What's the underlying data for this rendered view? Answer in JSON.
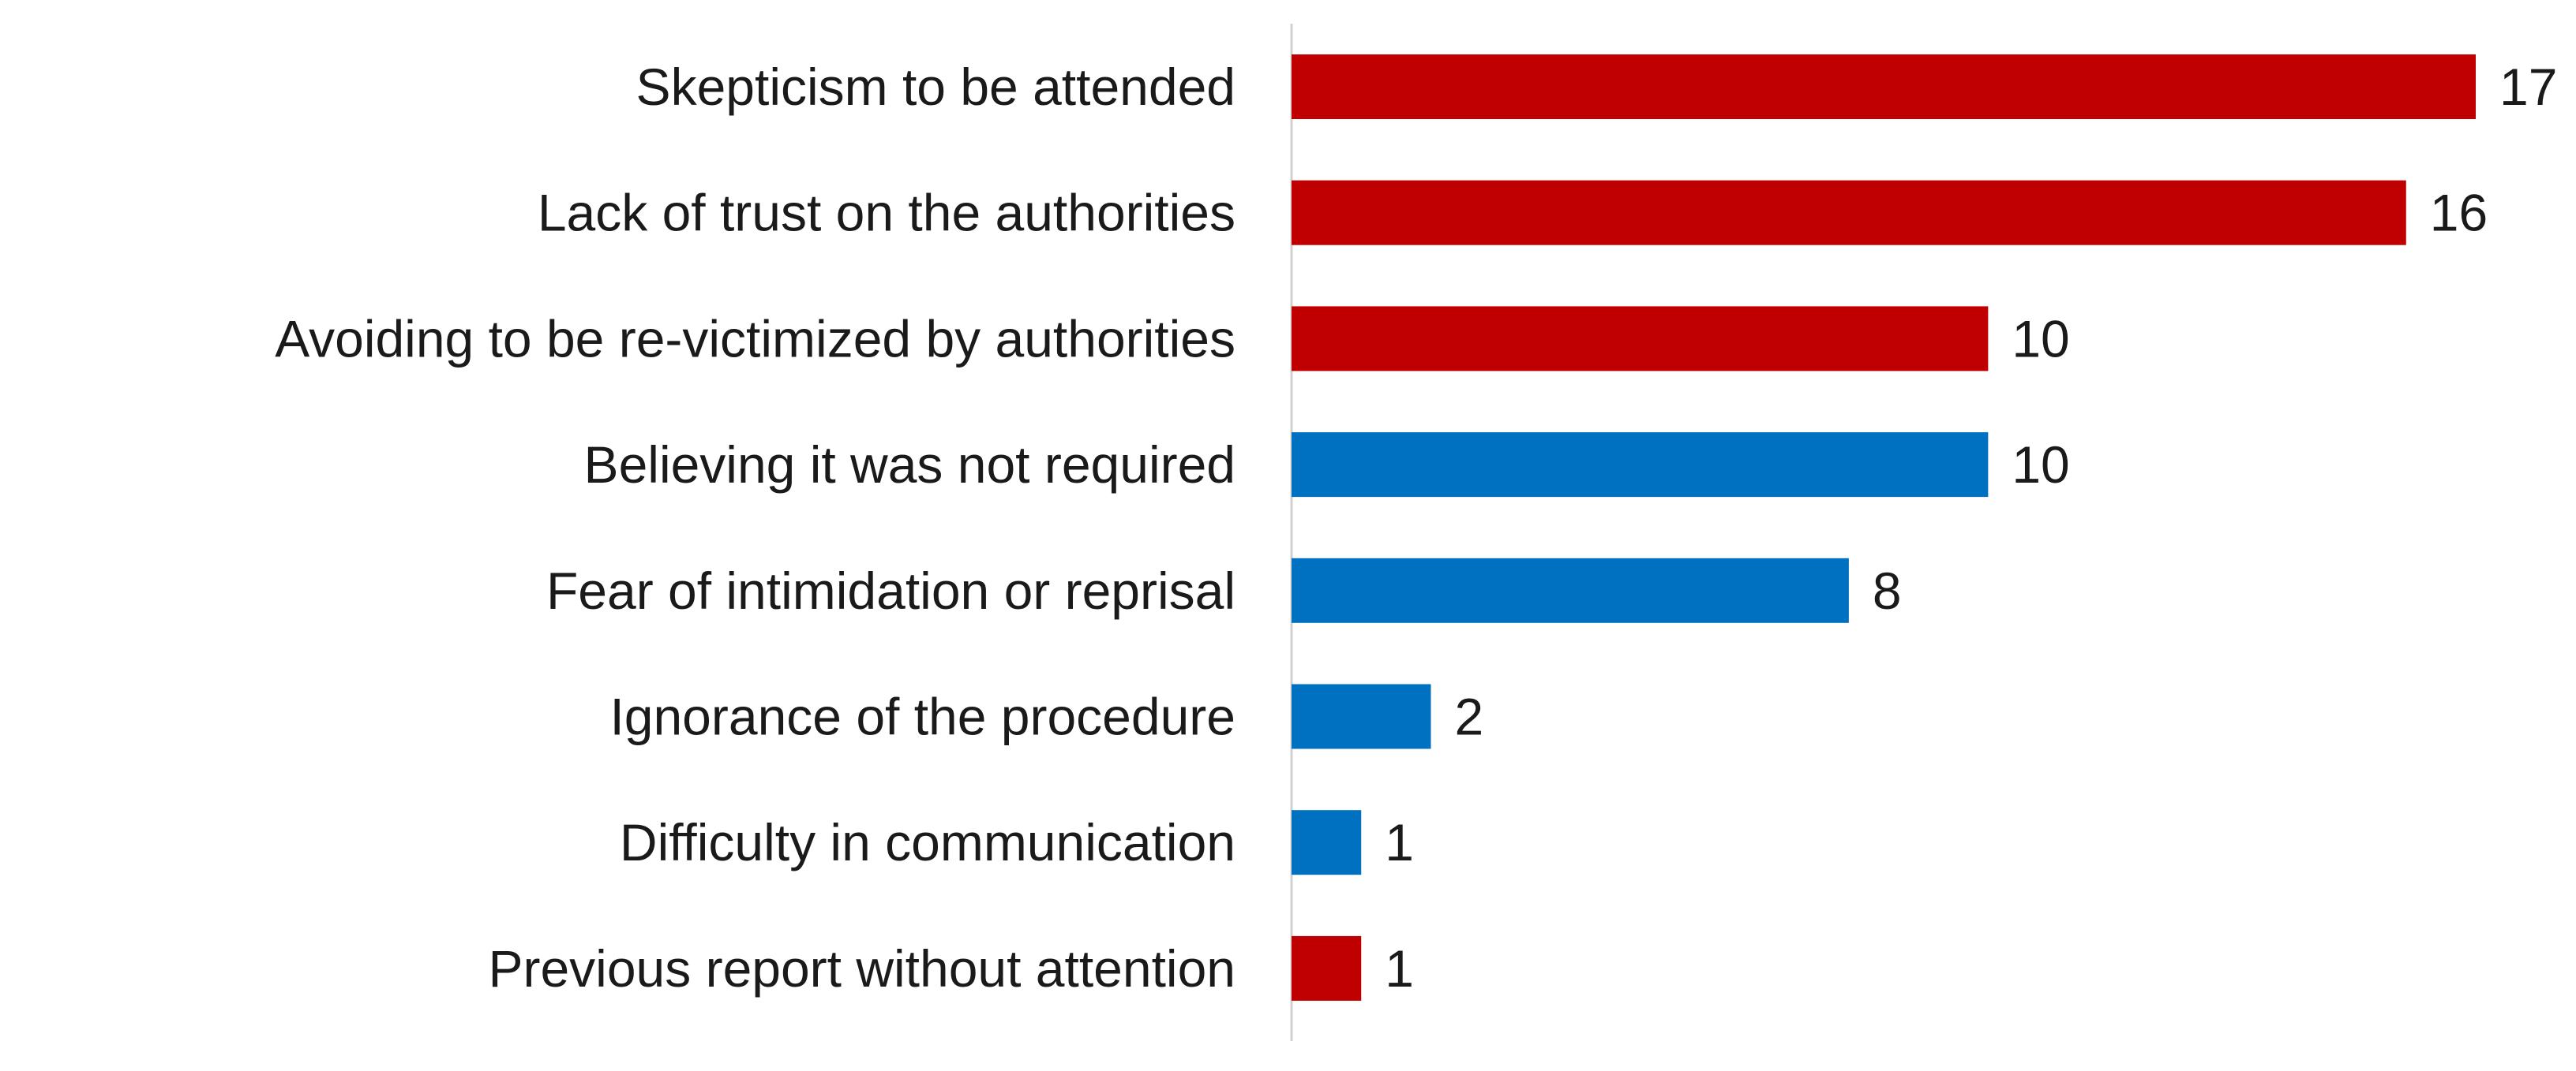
{
  "chart_data": {
    "type": "bar",
    "orientation": "horizontal",
    "categories": [
      "Skepticism to be attended",
      "Lack of trust on the authorities",
      "Avoiding to be re-victimized by authorities",
      "Believing it was not required",
      "Fear of intimidation or reprisal",
      "Ignorance of the procedure",
      "Difficulty in communication",
      "Previous report without attention"
    ],
    "values": [
      17,
      16,
      10,
      10,
      8,
      2,
      1,
      1
    ],
    "data_labels": [
      "17",
      "16",
      "10",
      "10",
      "8",
      "2",
      "1",
      "1"
    ],
    "bar_colors": [
      "#c00000",
      "#c00000",
      "#c00000",
      "#0070c0",
      "#0070c0",
      "#0070c0",
      "#0070c0",
      "#c00000"
    ],
    "xlim": [
      0,
      17
    ],
    "grid": false,
    "legend": "none"
  }
}
